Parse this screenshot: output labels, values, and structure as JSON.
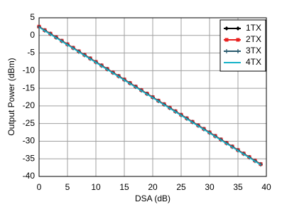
{
  "chart_data": {
    "type": "line",
    "x_label": "DSA (dB)",
    "y_label": "Output Power (dBm)",
    "x": [
      0,
      1,
      2,
      3,
      4,
      5,
      6,
      7,
      8,
      9,
      10,
      11,
      12,
      13,
      14,
      15,
      16,
      17,
      18,
      19,
      20,
      21,
      22,
      23,
      24,
      25,
      26,
      27,
      28,
      29,
      30,
      31,
      32,
      33,
      34,
      35,
      36,
      37,
      38,
      39
    ],
    "series": [
      {
        "name": "1TX",
        "color": "#000000",
        "marker": "diamond",
        "values": [
          2.5,
          1.5,
          0.5,
          -0.5,
          -1.5,
          -2.5,
          -3.5,
          -4.5,
          -5.5,
          -6.5,
          -7.5,
          -8.5,
          -9.5,
          -10.5,
          -11.5,
          -12.5,
          -13.5,
          -14.5,
          -15.5,
          -16.5,
          -17.5,
          -18.5,
          -19.5,
          -20.5,
          -21.5,
          -22.5,
          -23.5,
          -24.5,
          -25.5,
          -26.5,
          -27.5,
          -28.5,
          -29.5,
          -30.5,
          -31.5,
          -32.5,
          -33.5,
          -34.5,
          -35.5,
          -36.5
        ]
      },
      {
        "name": "2TX",
        "color": "#e8201f",
        "marker": "square",
        "values": [
          2.5,
          1.5,
          0.5,
          -0.5,
          -1.5,
          -2.5,
          -3.5,
          -4.5,
          -5.5,
          -6.5,
          -7.5,
          -8.5,
          -9.5,
          -10.5,
          -11.5,
          -12.5,
          -13.5,
          -14.5,
          -15.5,
          -16.5,
          -17.5,
          -18.5,
          -19.5,
          -20.5,
          -21.5,
          -22.5,
          -23.5,
          -24.5,
          -25.5,
          -26.5,
          -27.5,
          -28.5,
          -29.5,
          -30.5,
          -31.5,
          -32.5,
          -33.5,
          -34.5,
          -35.5,
          -36.5
        ]
      },
      {
        "name": "3TX",
        "color": "#2a5a6e",
        "marker": "plus",
        "values": [
          2.4,
          1.4,
          0.4,
          -0.6,
          -1.6,
          -2.6,
          -3.6,
          -4.6,
          -5.6,
          -6.6,
          -7.6,
          -8.6,
          -9.6,
          -10.6,
          -11.6,
          -12.6,
          -13.6,
          -14.6,
          -15.6,
          -16.6,
          -17.6,
          -18.6,
          -19.6,
          -20.6,
          -21.6,
          -22.6,
          -23.6,
          -24.6,
          -25.6,
          -26.6,
          -27.6,
          -28.6,
          -29.6,
          -30.6,
          -31.6,
          -32.6,
          -33.6,
          -34.6,
          -35.6,
          -36.6
        ]
      },
      {
        "name": "4TX",
        "color": "#17b3c8",
        "values": [
          2.3,
          1.3,
          0.3,
          -0.7,
          -1.7,
          -2.7,
          -3.7,
          -4.7,
          -5.7,
          -6.7,
          -7.7,
          -8.7,
          -9.7,
          -10.7,
          -11.7,
          -12.7,
          -13.7,
          -14.7,
          -15.7,
          -16.7,
          -17.7,
          -18.7,
          -19.7,
          -20.7,
          -21.7,
          -22.7,
          -23.7,
          -24.7,
          -25.7,
          -26.7,
          -27.7,
          -28.7,
          -29.7,
          -30.7,
          -31.7,
          -32.7,
          -33.7,
          -34.7,
          -35.7,
          -36.7
        ]
      }
    ],
    "xlim": [
      0,
      40
    ],
    "xticks": [
      0,
      5,
      10,
      15,
      20,
      25,
      30,
      35,
      40
    ],
    "ylim": [
      -40,
      5
    ],
    "yticks": [
      -40,
      -35,
      -30,
      -25,
      -20,
      -15,
      -10,
      -5,
      0,
      5
    ],
    "grid": true,
    "legend": "top-right"
  }
}
